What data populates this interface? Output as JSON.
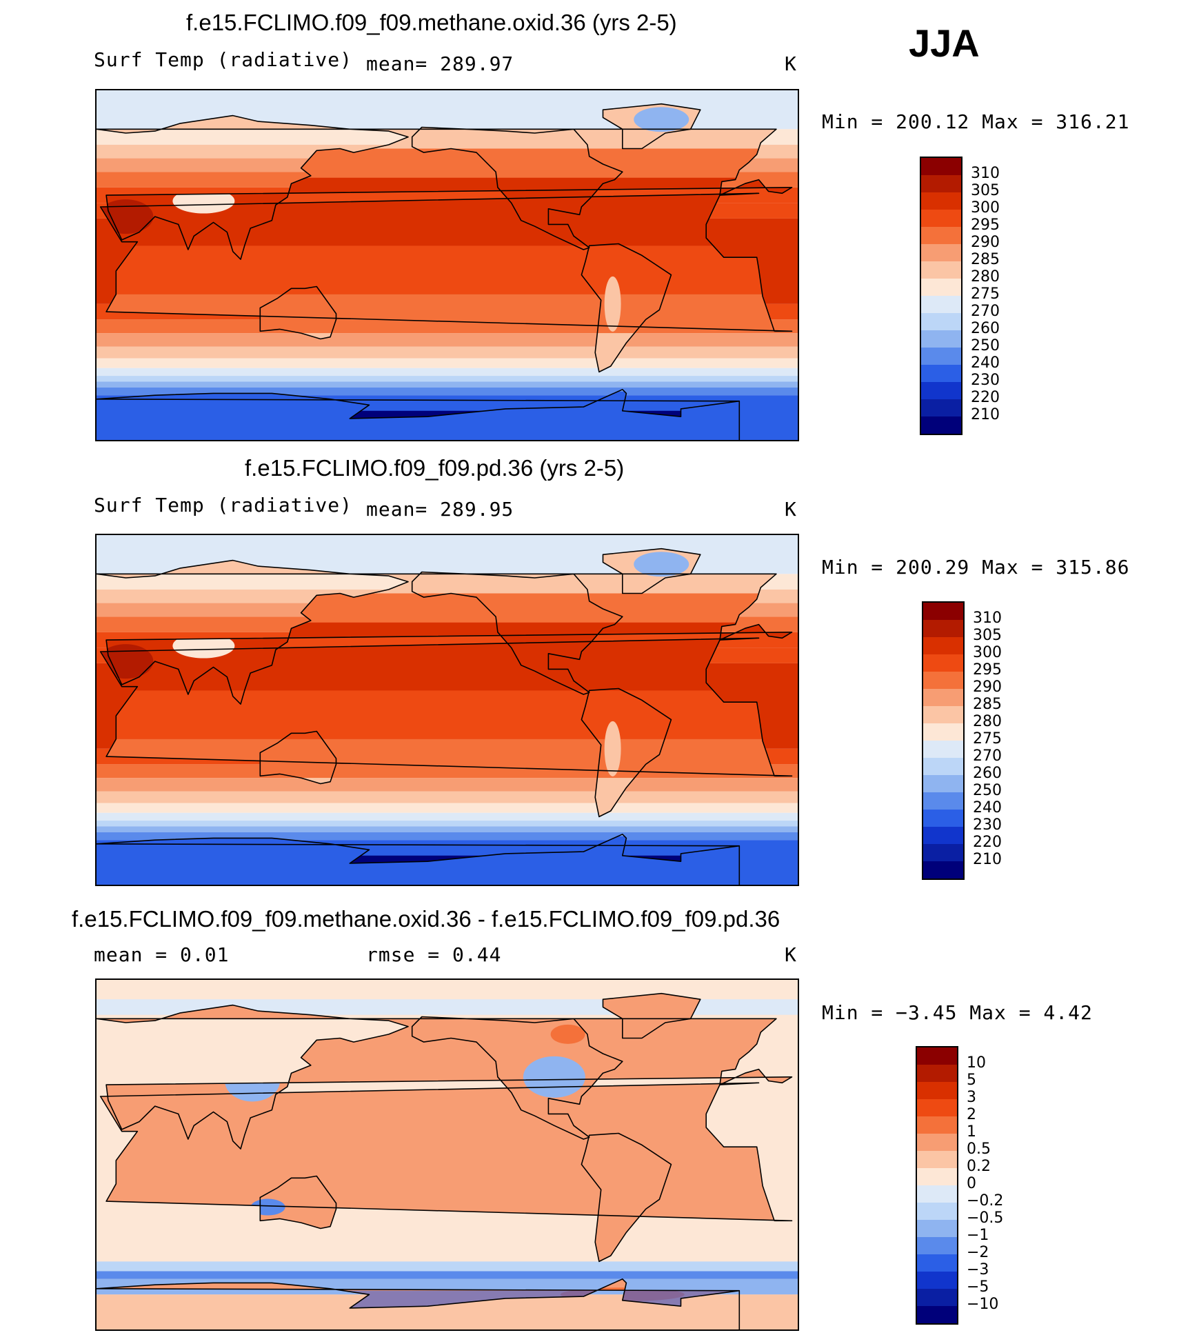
{
  "season": "JJA",
  "panels": [
    {
      "title": "f.e15.FCLIMO.f09_f09.methane.oxid.36 (yrs 2-5)",
      "left_label": "Surf Temp (radiative)",
      "middle_label": "mean= 289.97",
      "units": "K",
      "minmax": "Min = 200.12 Max = 316.21",
      "color_levels": [
        "310",
        "305",
        "300",
        "295",
        "290",
        "285",
        "280",
        "275",
        "270",
        "260",
        "250",
        "240",
        "230",
        "220",
        "210"
      ],
      "colors": [
        "#8b0000",
        "#b31b00",
        "#d93000",
        "#ee4a12",
        "#f4713a",
        "#f79d73",
        "#fbc5a5",
        "#fde7d6",
        "#dde9f7",
        "#bcd6f7",
        "#8fb4f0",
        "#5a8aeb",
        "#2b5fe6",
        "#1135cc",
        "#0a1fa3",
        "#00007a"
      ],
      "field": "temperature"
    },
    {
      "title": "f.e15.FCLIMO.f09_f09.pd.36 (yrs 2-5)",
      "left_label": "Surf Temp (radiative)",
      "middle_label": "mean= 289.95",
      "units": "K",
      "minmax": "Min = 200.29 Max = 315.86",
      "color_levels": [
        "310",
        "305",
        "300",
        "295",
        "290",
        "285",
        "280",
        "275",
        "270",
        "260",
        "250",
        "240",
        "230",
        "220",
        "210"
      ],
      "colors": [
        "#8b0000",
        "#b31b00",
        "#d93000",
        "#ee4a12",
        "#f4713a",
        "#f79d73",
        "#fbc5a5",
        "#fde7d6",
        "#dde9f7",
        "#bcd6f7",
        "#8fb4f0",
        "#5a8aeb",
        "#2b5fe6",
        "#1135cc",
        "#0a1fa3",
        "#00007a"
      ],
      "field": "temperature"
    },
    {
      "title": "f.e15.FCLIMO.f09_f09.methane.oxid.36 - f.e15.FCLIMO.f09_f09.pd.36",
      "left_label": "mean =   0.01",
      "middle_label": "rmse =   0.44",
      "units": "K",
      "minmax": "Min =  −3.45 Max =   4.42",
      "color_levels": [
        "10",
        "5",
        "3",
        "2",
        "1",
        "0.5",
        "0.2",
        "0",
        "−0.2",
        "−0.5",
        "−1",
        "−2",
        "−3",
        "−5",
        "−10"
      ],
      "colors": [
        "#8b0000",
        "#b31b00",
        "#d93000",
        "#ee4a12",
        "#f4713a",
        "#f79d73",
        "#fbc5a5",
        "#fde7d6",
        "#dde9f7",
        "#bcd6f7",
        "#8fb4f0",
        "#5a8aeb",
        "#2b5fe6",
        "#1135cc",
        "#0a1fa3",
        "#00007a"
      ],
      "field": "difference"
    }
  ]
}
